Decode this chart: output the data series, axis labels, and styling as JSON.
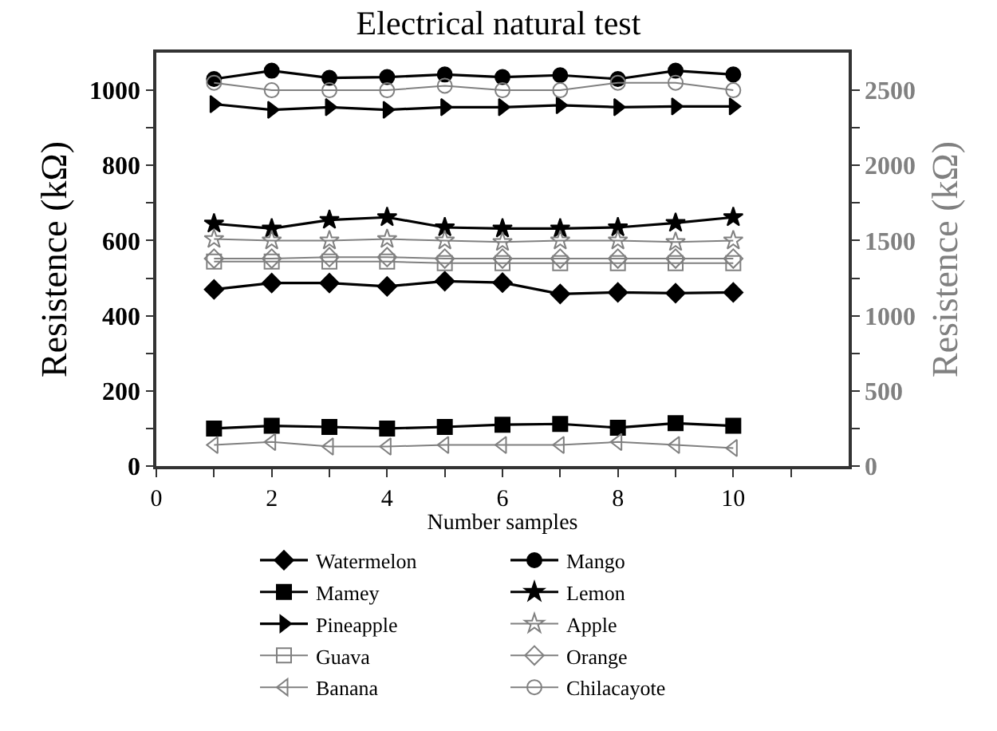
{
  "chart_data": {
    "type": "line",
    "title": "Electrical natural test",
    "xlabel": "Number samples",
    "ylabel": "Resistence (kΩ)",
    "y2label": "Resistence (kΩ)",
    "x": [
      1,
      2,
      3,
      4,
      5,
      6,
      7,
      8,
      9,
      10
    ],
    "xlim": [
      0,
      12
    ],
    "xticks": [
      0,
      {
        "value": 1,
        "label": null
      },
      2,
      {
        "value": 3,
        "label": null
      },
      4,
      {
        "value": 5,
        "label": null
      },
      6,
      {
        "value": 7,
        "label": null
      },
      8,
      {
        "value": 9,
        "label": null
      },
      10,
      {
        "value": 11,
        "label": null
      }
    ],
    "ylim": [
      0,
      1100
    ],
    "yticks": [
      0,
      {
        "value": 100,
        "label": null
      },
      200,
      {
        "value": 300,
        "label": null
      },
      400,
      {
        "value": 500,
        "label": null
      },
      600,
      {
        "value": 700,
        "label": null
      },
      800,
      {
        "value": 900,
        "label": null
      },
      1000
    ],
    "y2lim": [
      0,
      2750
    ],
    "y2ticks": [
      0,
      {
        "value": 250,
        "label": null
      },
      500,
      {
        "value": 750,
        "label": null
      },
      1000,
      {
        "value": 1250,
        "label": null
      },
      1500,
      {
        "value": 1750,
        "label": null
      },
      2000,
      {
        "value": 2250,
        "label": null
      },
      2500
    ],
    "grid": false,
    "legend": "bottom",
    "line_style": "solid",
    "series": [
      {
        "name": "Watermelon",
        "color": "#000000",
        "marker": "diamond",
        "values": [
          470,
          487,
          487,
          478,
          492,
          488,
          458,
          462,
          460,
          462
        ]
      },
      {
        "name": "Mango",
        "color": "#000000",
        "marker": "circle",
        "values": [
          1030,
          1052,
          1033,
          1035,
          1042,
          1035,
          1040,
          1030,
          1052,
          1042
        ]
      },
      {
        "name": "Mamey",
        "color": "#000000",
        "marker": "square",
        "values": [
          100,
          107,
          104,
          100,
          104,
          110,
          112,
          102,
          114,
          107
        ]
      },
      {
        "name": "Lemon",
        "color": "#000000",
        "marker": "star",
        "values": [
          645,
          632,
          655,
          662,
          635,
          632,
          632,
          635,
          647,
          662
        ]
      },
      {
        "name": "Pineapple",
        "color": "#000000",
        "marker": "triangle",
        "values": [
          963,
          948,
          955,
          948,
          955,
          955,
          960,
          955,
          957,
          957
        ]
      },
      {
        "name": "Apple",
        "color": "#808080",
        "marker": "star",
        "axis": "y2",
        "values": [
          1510,
          1500,
          1500,
          1510,
          1500,
          1490,
          1500,
          1500,
          1490,
          1500
        ]
      },
      {
        "name": "Guava",
        "color": "#808080",
        "marker": "square",
        "axis": "y2",
        "values": [
          1360,
          1360,
          1360,
          1360,
          1350,
          1350,
          1350,
          1350,
          1350,
          1350
        ]
      },
      {
        "name": "Orange",
        "color": "#808080",
        "marker": "diamond",
        "axis": "y2",
        "values": [
          1380,
          1380,
          1390,
          1390,
          1380,
          1380,
          1380,
          1380,
          1380,
          1380
        ]
      },
      {
        "name": "Banana",
        "color": "#808080",
        "marker": "triangle",
        "axis": "y2",
        "values": [
          140,
          160,
          130,
          130,
          140,
          140,
          140,
          160,
          140,
          120
        ]
      },
      {
        "name": "Chilacayote",
        "color": "#808080",
        "marker": "circle",
        "axis": "y2",
        "values": [
          2550,
          2500,
          2500,
          2500,
          2530,
          2500,
          2500,
          2550,
          2550,
          2500
        ]
      }
    ]
  }
}
